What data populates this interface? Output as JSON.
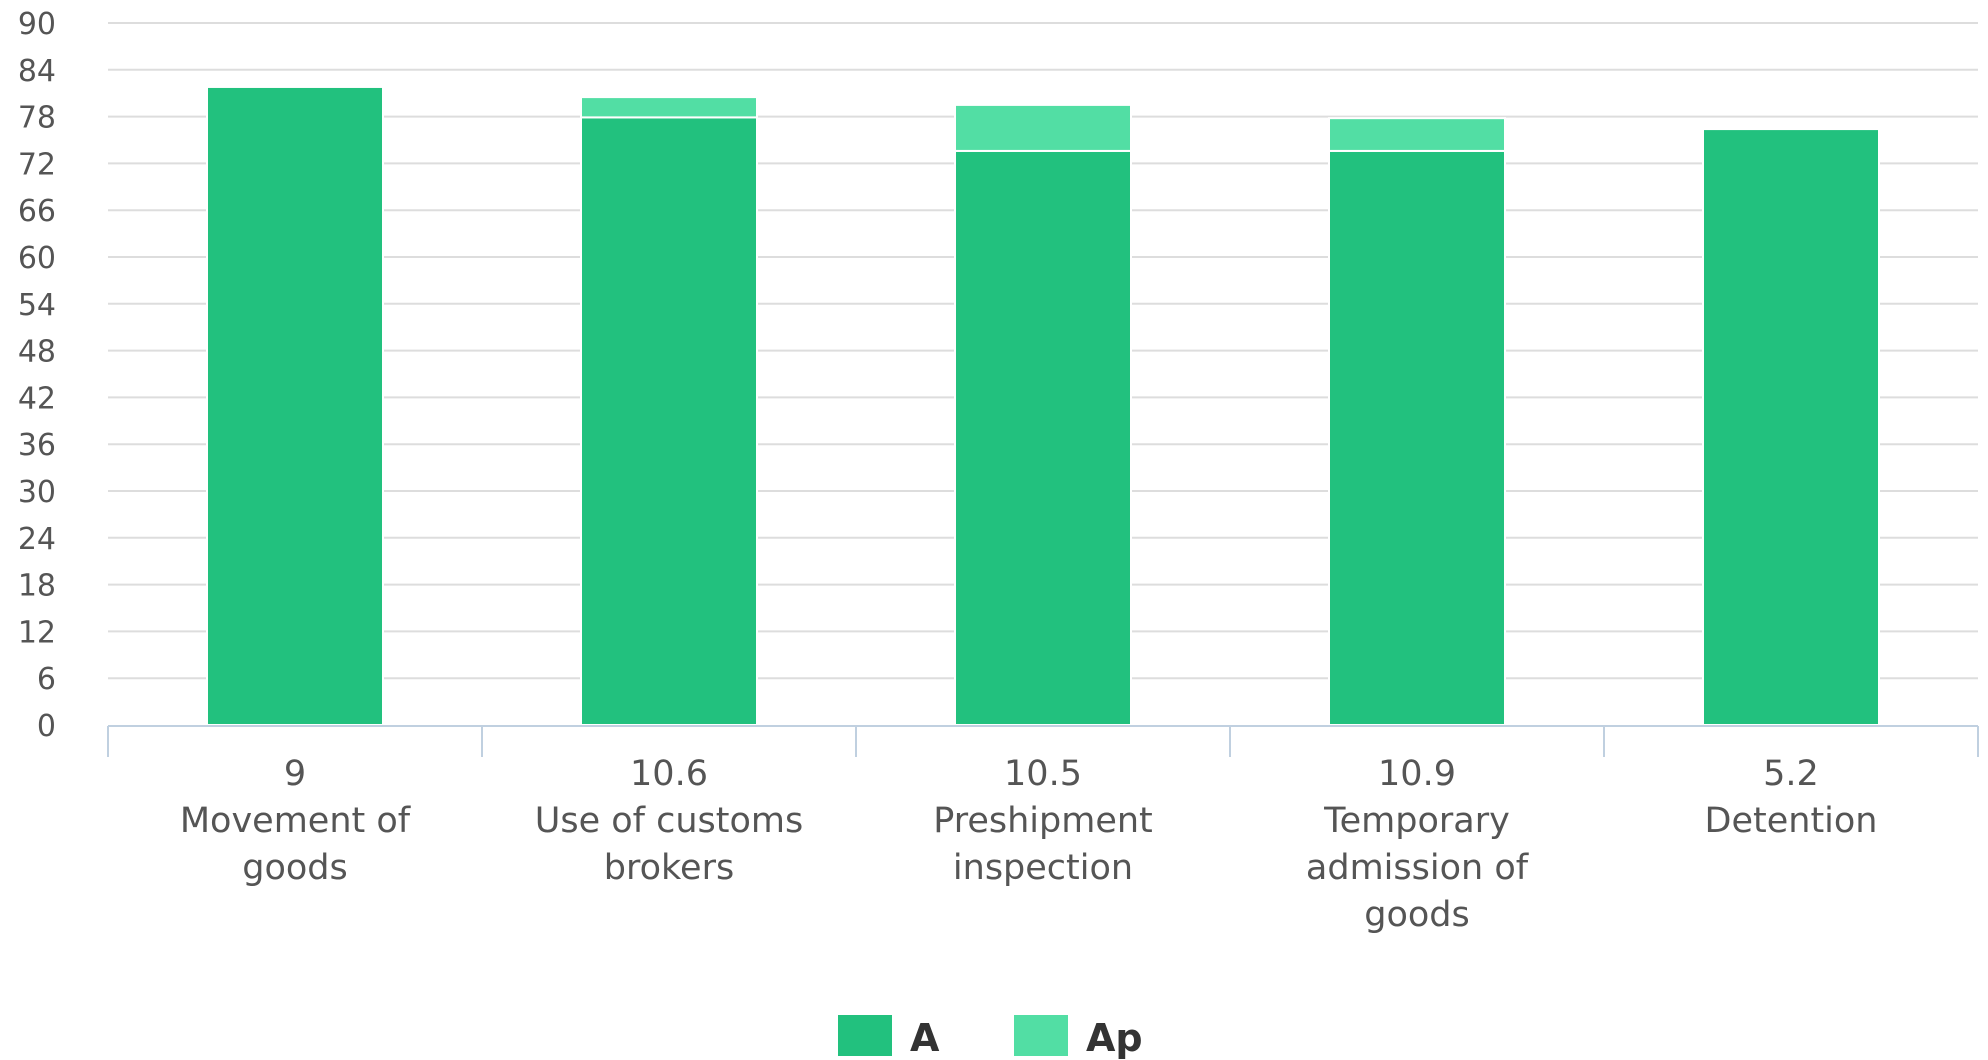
{
  "chart_data": {
    "type": "bar",
    "stacked": true,
    "categories": [
      [
        "9",
        "Movement of",
        "goods"
      ],
      [
        "10.6",
        "Use of customs",
        "brokers"
      ],
      [
        "10.5",
        "Preshipment",
        "inspection"
      ],
      [
        "10.9",
        "Temporary",
        "admission of",
        "goods"
      ],
      [
        "5.2",
        "Detention"
      ]
    ],
    "series": [
      {
        "name": "A",
        "color": "#22c17e",
        "values": [
          81.8,
          77.9,
          73.6,
          73.6,
          76.4
        ]
      },
      {
        "name": "Ap",
        "color": "#52dea4",
        "values": [
          0,
          2.6,
          5.9,
          4.2,
          0
        ]
      }
    ],
    "y_ticks": [
      "0",
      "6",
      "12",
      "18",
      "24",
      "30",
      "36",
      "42",
      "48",
      "54",
      "60",
      "66",
      "72",
      "78",
      "84",
      "90"
    ],
    "ylim": [
      0,
      90
    ],
    "grid": true,
    "legend_position": "bottom-center"
  }
}
